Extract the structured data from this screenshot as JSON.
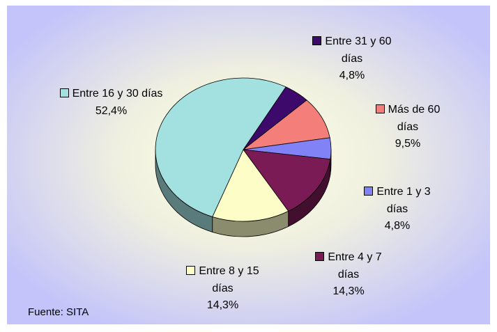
{
  "chart_data": {
    "type": "pie",
    "categories": [
      "Entre 31 y 60 días",
      "Más de 60 días",
      "Entre 1 y 3 días",
      "Entre 4 y 7 días",
      "Entre 8 y 15 días",
      "Entre 16 y 30 días"
    ],
    "values": [
      4.8,
      9.5,
      4.8,
      14.3,
      14.3,
      52.4
    ],
    "value_labels": [
      "4,8%",
      "9,5%",
      "4,8%",
      "14,3%",
      "14,3%",
      "52,4%"
    ],
    "colors": [
      "#3d0a6b",
      "#f47f7a",
      "#8282f7",
      "#7a1b55",
      "#fdfdc8",
      "#a3e0e0"
    ],
    "source": "Fuente: SITA"
  }
}
